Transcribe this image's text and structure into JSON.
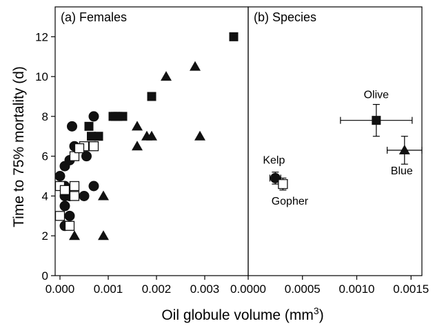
{
  "chart_data": {
    "type": "scatter",
    "ylabel": "Time to 75% mortality (d)",
    "xlabel_main": "Oil globule volume (mm",
    "xlabel_sup": "3",
    "xlabel_close": ")",
    "ylim": [
      0,
      13.5
    ],
    "yticks": [
      0,
      2,
      4,
      6,
      8,
      10,
      12
    ],
    "ytick_labels": [
      "0",
      "2",
      "4",
      "6",
      "8",
      "10",
      "12"
    ],
    "grid": false,
    "panels": [
      {
        "title": "(a) Females",
        "xlim": [
          -0.0001,
          0.0039
        ],
        "xticks": [
          0.0,
          0.001,
          0.002,
          0.003
        ],
        "xtick_labels": [
          "0.000",
          "0.001",
          "0.002",
          "0.003"
        ],
        "series": [
          {
            "marker": "circle",
            "fill": "#111111",
            "points": [
              [
                0.0,
                5.0
              ],
              [
                0.0001,
                5.5
              ],
              [
                0.0001,
                4.5
              ],
              [
                0.0001,
                4.0
              ],
              [
                0.0001,
                3.5
              ],
              [
                0.0001,
                2.5
              ],
              [
                0.0002,
                4.0
              ],
              [
                0.0002,
                3.0
              ],
              [
                0.0002,
                5.8
              ],
              [
                0.00025,
                7.5
              ],
              [
                0.0003,
                6.5
              ],
              [
                0.0005,
                4.0
              ],
              [
                0.00055,
                6.0
              ],
              [
                0.0007,
                4.5
              ],
              [
                0.0007,
                8.0
              ]
            ]
          },
          {
            "marker": "square-open",
            "fill": "#ffffff",
            "points": [
              [
                0.0,
                4.5
              ],
              [
                0.0,
                3.0
              ],
              [
                0.0001,
                4.3
              ],
              [
                0.0002,
                2.5
              ],
              [
                0.0003,
                4.5
              ],
              [
                0.0003,
                4.0
              ],
              [
                0.0003,
                6.0
              ],
              [
                0.0005,
                6.5
              ],
              [
                0.0007,
                6.5
              ],
              [
                0.0004,
                6.4
              ]
            ]
          },
          {
            "marker": "square",
            "fill": "#111111",
            "points": [
              [
                0.0006,
                7.5
              ],
              [
                0.00065,
                7.0
              ],
              [
                0.0008,
                7.0
              ],
              [
                0.0011,
                8.0
              ],
              [
                0.00115,
                8.0
              ],
              [
                0.0012,
                8.0
              ],
              [
                0.0013,
                8.0
              ],
              [
                0.0019,
                9.0
              ],
              [
                0.0036,
                12.0
              ]
            ]
          },
          {
            "marker": "triangle",
            "fill": "#111111",
            "points": [
              [
                0.0003,
                2.0
              ],
              [
                0.0009,
                2.0
              ],
              [
                0.0009,
                4.0
              ],
              [
                0.0016,
                7.5
              ],
              [
                0.0016,
                6.5
              ],
              [
                0.0018,
                7.0
              ],
              [
                0.0019,
                7.0
              ],
              [
                0.0022,
                10.0
              ],
              [
                0.0028,
                10.5
              ],
              [
                0.0029,
                7.0
              ]
            ]
          }
        ]
      },
      {
        "title": "(b) Species",
        "xlim": [
          0.0,
          0.0016
        ],
        "xticks": [
          0.0,
          0.0005,
          0.001,
          0.0015
        ],
        "xtick_labels": [
          "0.0000",
          "0.0005",
          "0.0010",
          "0.0015"
        ],
        "points": [
          {
            "label": "Kelp",
            "marker": "circle",
            "fill": "#111111",
            "x": 0.00025,
            "y": 4.9,
            "xerr": 5e-05,
            "yerr": 0.3,
            "label_pos": "above"
          },
          {
            "label": "Gopher",
            "marker": "square-open",
            "fill": "#ffffff",
            "x": 0.00032,
            "y": 4.6,
            "xerr": 4e-05,
            "yerr": 0.3,
            "label_pos": "below"
          },
          {
            "label": "Olive",
            "marker": "square",
            "fill": "#111111",
            "x": 0.00118,
            "y": 7.8,
            "xerr": 0.00033,
            "yerr": 0.8,
            "label_pos": "above"
          },
          {
            "label": "Blue",
            "marker": "triangle",
            "fill": "#111111",
            "x": 0.00144,
            "y": 6.3,
            "xerr": 0.00016,
            "yerr": 0.7,
            "label_pos": "below"
          }
        ]
      }
    ]
  }
}
